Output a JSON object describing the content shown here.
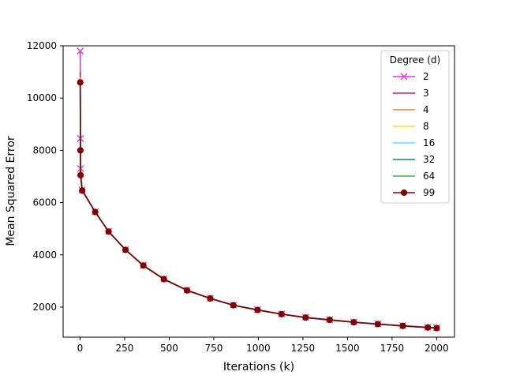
{
  "chart_data": {
    "type": "line",
    "title": "",
    "xlabel": "Iterations (k)",
    "ylabel": "Mean Squared Error",
    "xlim": [
      -95,
      2100
    ],
    "ylim": [
      850,
      12000
    ],
    "xticks": [
      0,
      250,
      500,
      750,
      1000,
      1250,
      1500,
      1750,
      2000
    ],
    "yticks": [
      2000,
      4000,
      6000,
      8000,
      10000,
      12000
    ],
    "grid": false,
    "legend": {
      "title": "Degree (d)",
      "placement": "top-right"
    },
    "series": [
      {
        "name": "2",
        "color": "#dd33dd",
        "marker": "x",
        "points": [
          [
            1,
            11800
          ],
          [
            2,
            8450
          ],
          [
            3,
            7300
          ],
          [
            12,
            6480
          ],
          [
            85,
            5650
          ],
          [
            160,
            4900
          ],
          [
            255,
            4200
          ],
          [
            355,
            3600
          ],
          [
            470,
            3080
          ],
          [
            600,
            2650
          ],
          [
            730,
            2340
          ],
          [
            860,
            2080
          ],
          [
            995,
            1900
          ],
          [
            1130,
            1740
          ],
          [
            1265,
            1610
          ],
          [
            1400,
            1520
          ],
          [
            1535,
            1430
          ],
          [
            1670,
            1360
          ],
          [
            1810,
            1290
          ],
          [
            1950,
            1230
          ],
          [
            2000,
            1210
          ]
        ]
      },
      {
        "name": "3",
        "color": "#d4145a",
        "marker": "none",
        "points": [
          [
            1,
            11000
          ],
          [
            2,
            8100
          ],
          [
            3,
            7100
          ],
          [
            12,
            6470
          ],
          [
            85,
            5640
          ],
          [
            160,
            4890
          ],
          [
            255,
            4190
          ],
          [
            355,
            3590
          ],
          [
            470,
            3070
          ],
          [
            600,
            2640
          ],
          [
            730,
            2330
          ],
          [
            860,
            2070
          ],
          [
            995,
            1890
          ],
          [
            1130,
            1730
          ],
          [
            1265,
            1600
          ],
          [
            1400,
            1510
          ],
          [
            1535,
            1420
          ],
          [
            1670,
            1350
          ],
          [
            1810,
            1280
          ],
          [
            1950,
            1220
          ],
          [
            2000,
            1200
          ]
        ]
      },
      {
        "name": "4",
        "color": "#f07f32",
        "marker": "none",
        "points": [
          [
            1,
            10800
          ],
          [
            2,
            8050
          ],
          [
            3,
            7080
          ],
          [
            12,
            6465
          ],
          [
            85,
            5640
          ],
          [
            160,
            4890
          ],
          [
            255,
            4190
          ],
          [
            355,
            3590
          ],
          [
            470,
            3070
          ],
          [
            600,
            2640
          ],
          [
            730,
            2330
          ],
          [
            860,
            2070
          ],
          [
            995,
            1890
          ],
          [
            1130,
            1730
          ],
          [
            1265,
            1600
          ],
          [
            1400,
            1510
          ],
          [
            1535,
            1420
          ],
          [
            1670,
            1350
          ],
          [
            1810,
            1280
          ],
          [
            1950,
            1220
          ],
          [
            2000,
            1200
          ]
        ]
      },
      {
        "name": "8",
        "color": "#f5dd2a",
        "marker": "none",
        "points": [
          [
            1,
            10700
          ],
          [
            2,
            8020
          ],
          [
            3,
            7070
          ],
          [
            12,
            6460
          ],
          [
            85,
            5640
          ],
          [
            160,
            4890
          ],
          [
            255,
            4190
          ],
          [
            355,
            3590
          ],
          [
            470,
            3070
          ],
          [
            600,
            2640
          ],
          [
            730,
            2330
          ],
          [
            860,
            2070
          ],
          [
            995,
            1890
          ],
          [
            1130,
            1730
          ],
          [
            1265,
            1600
          ],
          [
            1400,
            1510
          ],
          [
            1535,
            1420
          ],
          [
            1670,
            1350
          ],
          [
            1810,
            1280
          ],
          [
            1950,
            1220
          ],
          [
            2000,
            1200
          ]
        ]
      },
      {
        "name": "16",
        "color": "#55e8f0",
        "marker": "none",
        "points": [
          [
            1,
            10650
          ],
          [
            2,
            8010
          ],
          [
            3,
            7060
          ],
          [
            12,
            6460
          ],
          [
            85,
            5640
          ],
          [
            160,
            4890
          ],
          [
            255,
            4190
          ],
          [
            355,
            3590
          ],
          [
            470,
            3070
          ],
          [
            600,
            2640
          ],
          [
            730,
            2330
          ],
          [
            860,
            2070
          ],
          [
            995,
            1890
          ],
          [
            1130,
            1730
          ],
          [
            1265,
            1600
          ],
          [
            1400,
            1510
          ],
          [
            1535,
            1420
          ],
          [
            1670,
            1350
          ],
          [
            1810,
            1280
          ],
          [
            1950,
            1220
          ],
          [
            2000,
            1200
          ]
        ]
      },
      {
        "name": "32",
        "color": "#1f77b4",
        "marker": "none",
        "points": [
          [
            1,
            10620
          ],
          [
            2,
            8000
          ],
          [
            3,
            7060
          ],
          [
            12,
            6460
          ],
          [
            85,
            5640
          ],
          [
            160,
            4890
          ],
          [
            255,
            4190
          ],
          [
            355,
            3590
          ],
          [
            470,
            3070
          ],
          [
            600,
            2640
          ],
          [
            730,
            2330
          ],
          [
            860,
            2070
          ],
          [
            995,
            1890
          ],
          [
            1130,
            1730
          ],
          [
            1265,
            1600
          ],
          [
            1400,
            1510
          ],
          [
            1535,
            1420
          ],
          [
            1670,
            1350
          ],
          [
            1810,
            1280
          ],
          [
            1950,
            1220
          ],
          [
            2000,
            1200
          ]
        ]
      },
      {
        "name": "64",
        "color": "#3cb44b",
        "marker": "none",
        "points": [
          [
            1,
            10610
          ],
          [
            2,
            8000
          ],
          [
            3,
            7055
          ],
          [
            12,
            6460
          ],
          [
            85,
            5640
          ],
          [
            160,
            4890
          ],
          [
            255,
            4190
          ],
          [
            355,
            3590
          ],
          [
            470,
            3070
          ],
          [
            600,
            2640
          ],
          [
            730,
            2330
          ],
          [
            860,
            2070
          ],
          [
            995,
            1890
          ],
          [
            1130,
            1730
          ],
          [
            1265,
            1600
          ],
          [
            1400,
            1510
          ],
          [
            1535,
            1420
          ],
          [
            1670,
            1350
          ],
          [
            1810,
            1280
          ],
          [
            1950,
            1220
          ],
          [
            2000,
            1200
          ]
        ]
      },
      {
        "name": "99",
        "color": "#800000",
        "marker": "o",
        "points": [
          [
            1,
            10600
          ],
          [
            2,
            8000
          ],
          [
            3,
            7050
          ],
          [
            12,
            6460
          ],
          [
            85,
            5640
          ],
          [
            160,
            4890
          ],
          [
            255,
            4190
          ],
          [
            355,
            3590
          ],
          [
            470,
            3070
          ],
          [
            600,
            2640
          ],
          [
            730,
            2330
          ],
          [
            860,
            2070
          ],
          [
            995,
            1890
          ],
          [
            1130,
            1730
          ],
          [
            1265,
            1600
          ],
          [
            1400,
            1510
          ],
          [
            1535,
            1420
          ],
          [
            1670,
            1350
          ],
          [
            1810,
            1280
          ],
          [
            1950,
            1220
          ],
          [
            2000,
            1200
          ]
        ]
      }
    ]
  }
}
